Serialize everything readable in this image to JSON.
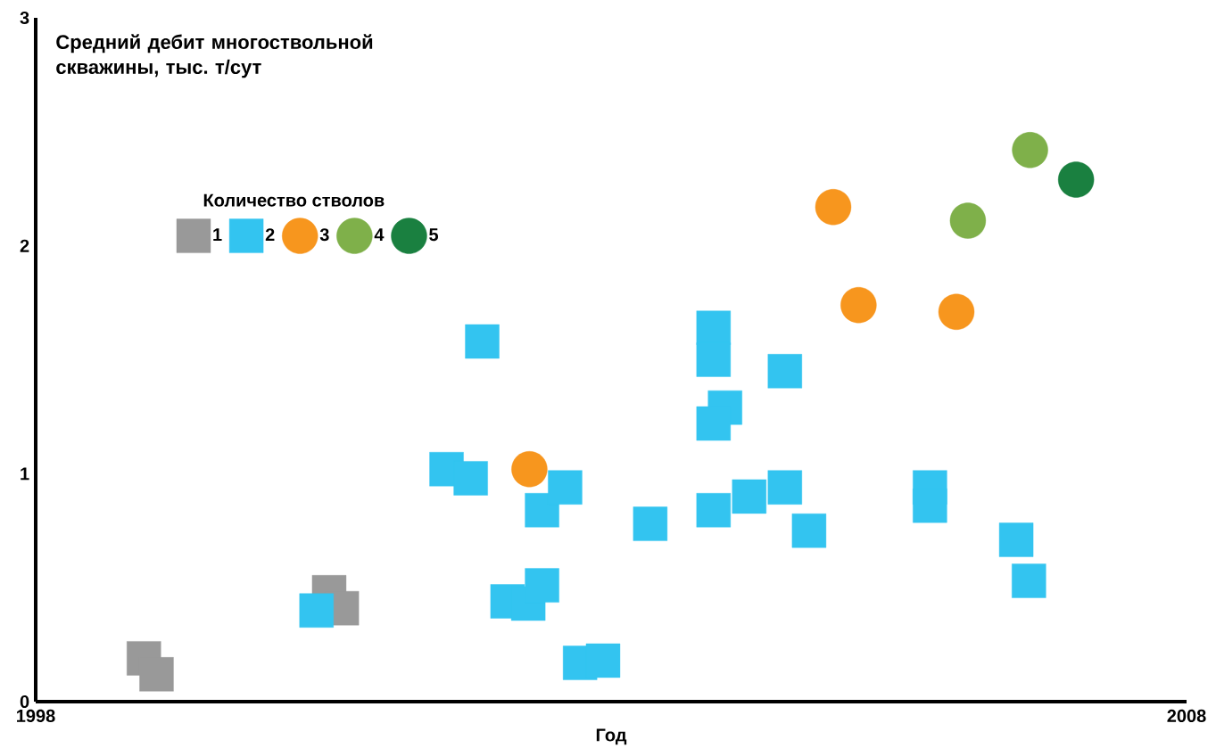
{
  "chart_data": {
    "type": "scatter",
    "xlabel": "Год",
    "ylabel": "Средний дебит многоствольной скважины, тыс. т/сут",
    "legend_title": "Количество стволов",
    "xlim": [
      1998,
      2008
    ],
    "ylim": [
      0,
      3
    ],
    "xticks": [
      1998,
      2008
    ],
    "yticks": [
      0,
      1,
      2,
      3
    ],
    "grid": false,
    "legend": "top left",
    "series": [
      {
        "name": "1",
        "color": "#999999",
        "marker": "square",
        "x": [
          1998.94,
          1999.05,
          2000.55,
          2000.66
        ],
        "values": [
          0.19,
          0.12,
          0.48,
          0.41
        ]
      },
      {
        "name": "2",
        "color": "#33c4f0",
        "marker": "square",
        "x": [
          2000.44,
          2001.88,
          2001.57,
          2001.78,
          2002.4,
          2002.6,
          2002.1,
          2002.28,
          2002.4,
          2002.73,
          2002.93,
          2003.34,
          2003.89,
          2003.89,
          2003.99,
          2003.89,
          2003.89,
          2004.2,
          2004.51,
          2004.72,
          2004.51,
          2005.77,
          2005.77,
          2006.52,
          2006.63
        ],
        "values": [
          0.4,
          1.58,
          1.02,
          0.98,
          0.84,
          0.94,
          0.44,
          0.43,
          0.51,
          0.17,
          0.18,
          0.78,
          1.64,
          1.5,
          1.29,
          1.22,
          0.84,
          0.9,
          0.94,
          0.75,
          1.45,
          0.94,
          0.86,
          0.71,
          0.53
        ]
      },
      {
        "name": "3",
        "color": "#f7961e",
        "marker": "circle",
        "x": [
          2002.29,
          2004.93,
          2005.15,
          2006.0
        ],
        "values": [
          1.02,
          2.17,
          1.74,
          1.71
        ]
      },
      {
        "name": "4",
        "color": "#7fb04a",
        "marker": "circle",
        "x": [
          2006.64,
          2006.1
        ],
        "values": [
          2.42,
          2.11
        ]
      },
      {
        "name": "5",
        "color": "#1a8040",
        "marker": "circle",
        "x": [
          2007.04
        ],
        "values": [
          2.29
        ]
      }
    ]
  }
}
